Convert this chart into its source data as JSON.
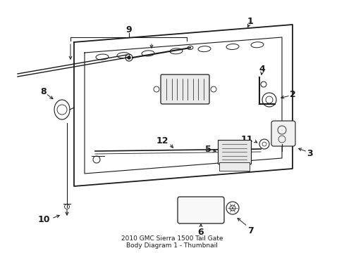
{
  "bg_color": "#ffffff",
  "line_color": "#1a1a1a",
  "fig_width": 4.89,
  "fig_height": 3.6,
  "dpi": 100,
  "title": "2010 GMC Sierra 1500 Tail Gate\nBody Diagram 1 - Thumbnail",
  "title_fontsize": 6.5,
  "label_fontsize": 9
}
